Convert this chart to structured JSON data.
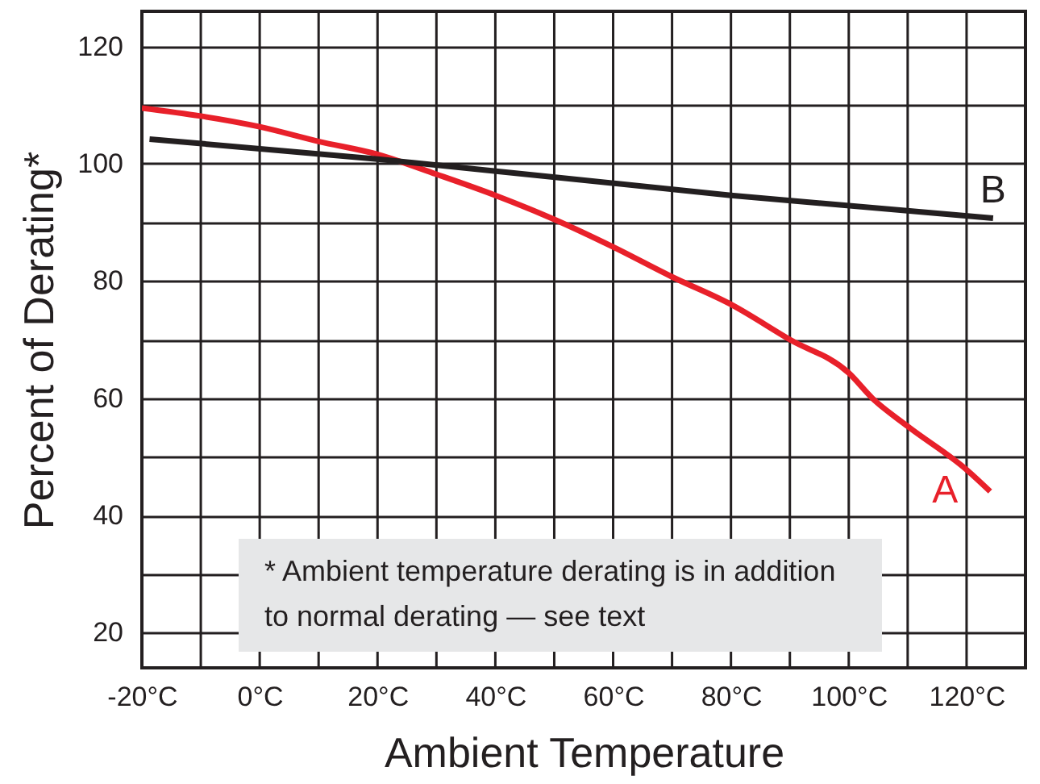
{
  "chart_data": {
    "type": "line",
    "xlabel": "Ambient Temperature",
    "ylabel": "Percent of Derating*",
    "x": [
      -20,
      0,
      10,
      20,
      30,
      40,
      50,
      60,
      70,
      80,
      90,
      100,
      104,
      110,
      120,
      124
    ],
    "series": [
      {
        "name": "A",
        "color": "#e8202a",
        "values": [
          109.5,
          106.3,
          103.8,
          101.6,
          98.2,
          94.6,
          90.5,
          85.8,
          80.7,
          76,
          70,
          64.3,
          60,
          55.2,
          47.8,
          44.1
        ]
      },
      {
        "name": "B",
        "color": "#231f20",
        "x": [
          -18.7,
          20,
          80,
          124.5
        ],
        "values": [
          104.2,
          100.8,
          94.6,
          90.7
        ]
      }
    ],
    "xlim": [
      -20,
      130
    ],
    "xticks": [
      {
        "value": -20,
        "label": "-20°C"
      },
      {
        "value": -10,
        "label": null
      },
      {
        "value": 0,
        "label": "0°C"
      },
      {
        "value": 10,
        "label": null
      },
      {
        "value": 20,
        "label": "20°C"
      },
      {
        "value": 30,
        "label": null
      },
      {
        "value": 40,
        "label": "40°C"
      },
      {
        "value": 50,
        "label": null
      },
      {
        "value": 60,
        "label": "60°C"
      },
      {
        "value": 70,
        "label": null
      },
      {
        "value": 80,
        "label": "80°C"
      },
      {
        "value": 90,
        "label": null
      },
      {
        "value": 100,
        "label": "100°C"
      },
      {
        "value": 110,
        "label": null
      },
      {
        "value": 120,
        "label": "120°C"
      },
      {
        "value": 130,
        "label": null
      }
    ],
    "ylim": [
      14,
      126
    ],
    "yticks": [
      20,
      {
        "value": 30,
        "label": null
      },
      40,
      {
        "value": 50,
        "label": null
      },
      60,
      {
        "value": 70,
        "label": null
      },
      80,
      {
        "value": 90,
        "label": null
      },
      100,
      {
        "value": 110,
        "label": null
      },
      120
    ],
    "grid": true,
    "line_style": "solid",
    "marker": "none",
    "annotations": [
      "* Ambient temperature derating is in addition to normal derating — see text"
    ]
  }
}
